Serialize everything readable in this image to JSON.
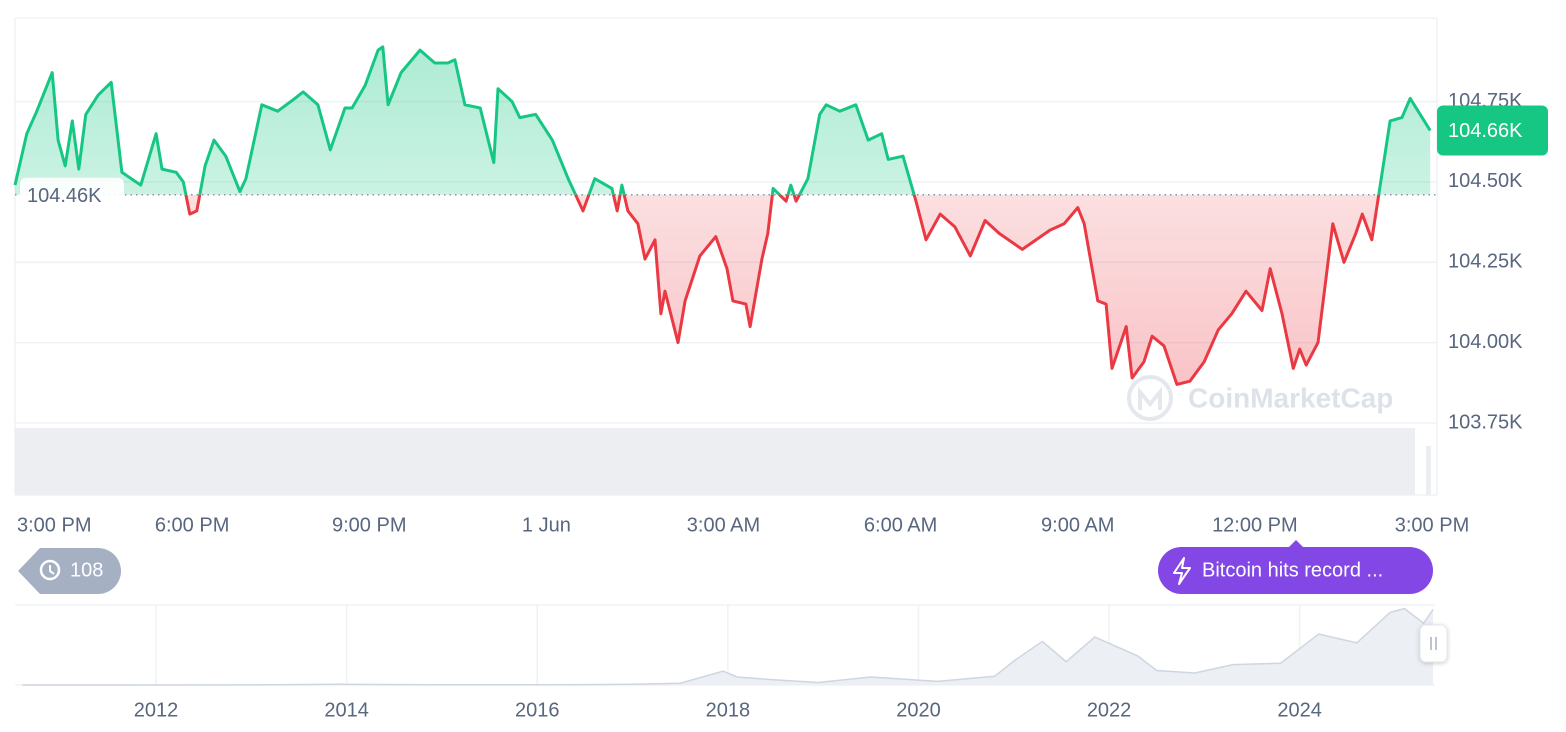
{
  "chart_data": [
    {
      "type": "line",
      "xlim": [
        15,
        39
      ],
      "xticks": [
        {
          "value": 15,
          "label": "3:00 PM"
        },
        {
          "value": 18,
          "label": "6:00 PM"
        },
        {
          "value": 21,
          "label": "9:00 PM"
        },
        {
          "value": 24,
          "label": "1 Jun"
        },
        {
          "value": 27,
          "label": "3:00 AM"
        },
        {
          "value": 30,
          "label": "6:00 AM"
        },
        {
          "value": 33,
          "label": "9:00 AM"
        },
        {
          "value": 36,
          "label": "12:00 PM"
        },
        {
          "value": 39,
          "label": "3:00 PM"
        }
      ],
      "ylim": [
        103750,
        105010
      ],
      "yticks": [
        {
          "value": 103750,
          "label": "103.75K"
        },
        {
          "value": 104000,
          "label": "104.00K"
        },
        {
          "value": 104250,
          "label": "104.25K"
        },
        {
          "value": 104500,
          "label": "104.50K"
        },
        {
          "value": 104750,
          "label": "104.75K"
        }
      ],
      "grid": true,
      "color_above": "#16c784",
      "color_below": "#ea3943",
      "baseline": {
        "value": 104460,
        "label": "104.46K"
      },
      "last_price": {
        "value": 104660,
        "label": "104.66K"
      },
      "events": {
        "count": 108,
        "news": "Bitcoin hits record ..."
      },
      "watermark": "CoinMarketCap",
      "x": [
        15.0,
        15.2,
        15.37,
        15.63,
        15.73,
        15.85,
        15.97,
        16.08,
        16.2,
        16.41,
        16.63,
        16.81,
        17.13,
        17.39,
        17.49,
        17.73,
        17.85,
        17.96,
        18.08,
        18.22,
        18.37,
        18.57,
        18.81,
        18.91,
        19.18,
        19.45,
        19.74,
        19.88,
        20.13,
        20.34,
        20.59,
        20.71,
        20.93,
        21.15,
        21.23,
        21.32,
        21.54,
        21.86,
        22.11,
        22.33,
        22.45,
        22.62,
        22.88,
        23.11,
        23.18,
        23.42,
        23.55,
        23.82,
        24.1,
        24.37,
        24.62,
        24.82,
        25.11,
        25.2,
        25.28,
        25.38,
        25.55,
        25.67,
        25.84,
        25.94,
        26.01,
        26.23,
        26.35,
        26.6,
        26.87,
        27.06,
        27.16,
        27.38,
        27.45,
        27.65,
        27.75,
        27.84,
        28.06,
        28.14,
        28.23,
        28.43,
        28.63,
        28.74,
        28.97,
        29.24,
        29.45,
        29.68,
        29.79,
        30.04,
        30.26,
        30.43,
        30.67,
        30.92,
        31.18,
        31.43,
        31.67,
        32.06,
        32.53,
        32.77,
        33.0,
        33.11,
        33.34,
        33.48,
        33.58,
        33.82,
        33.92,
        34.12,
        34.26,
        34.46,
        34.68,
        34.9,
        35.14,
        35.38,
        35.61,
        35.85,
        36.12,
        36.26,
        36.46,
        36.65,
        36.76,
        36.87,
        37.07,
        37.32,
        37.51,
        37.71,
        37.82,
        37.98,
        38.19,
        38.29,
        38.49,
        38.63,
        38.97
      ],
      "values": [
        104490,
        104650,
        104720,
        104840,
        104630,
        104550,
        104690,
        104540,
        104710,
        104770,
        104810,
        104530,
        104490,
        104650,
        104540,
        104530,
        104500,
        104400,
        104410,
        104550,
        104630,
        104580,
        104470,
        104510,
        104740,
        104720,
        104760,
        104780,
        104740,
        104600,
        104730,
        104730,
        104800,
        104910,
        104920,
        104740,
        104840,
        104910,
        104870,
        104870,
        104880,
        104740,
        104730,
        104560,
        104790,
        104750,
        104700,
        104710,
        104630,
        104510,
        104410,
        104510,
        104480,
        104410,
        104490,
        104410,
        104370,
        104260,
        104320,
        104090,
        104160,
        104000,
        104130,
        104270,
        104330,
        104230,
        104130,
        104120,
        104050,
        104260,
        104340,
        104480,
        104440,
        104490,
        104440,
        104510,
        104710,
        104740,
        104720,
        104740,
        104630,
        104650,
        104570,
        104580,
        104440,
        104320,
        104400,
        104360,
        104270,
        104380,
        104340,
        104290,
        104350,
        104370,
        104420,
        104370,
        104130,
        104120,
        103920,
        104050,
        103890,
        103940,
        104020,
        103990,
        103870,
        103880,
        103940,
        104040,
        104090,
        104160,
        104100,
        104230,
        104090,
        103920,
        103980,
        103930,
        104000,
        104370,
        104250,
        104340,
        104400,
        104320,
        104570,
        104690,
        104700,
        104760,
        104660
      ]
    },
    {
      "type": "area",
      "xlim": [
        2010.52,
        2025.42
      ],
      "xticks": [
        2012,
        2014,
        2016,
        2018,
        2020,
        2022,
        2024
      ],
      "ylim": [
        0,
        110000
      ],
      "color": "#cfd6e0",
      "x": [
        2010.6,
        2013.0,
        2013.9,
        2015.0,
        2016.5,
        2017.0,
        2017.5,
        2017.95,
        2018.1,
        2018.5,
        2018.95,
        2019.5,
        2020.2,
        2020.8,
        2021.0,
        2021.3,
        2021.55,
        2021.85,
        2022.3,
        2022.5,
        2022.9,
        2023.3,
        2023.8,
        2024.2,
        2024.6,
        2024.95,
        2025.1,
        2025.3,
        2025.4
      ],
      "values": [
        0,
        100,
        1000,
        300,
        600,
        1000,
        2500,
        19000,
        11000,
        7000,
        3500,
        11000,
        5000,
        12000,
        33000,
        60000,
        32000,
        66000,
        40000,
        20000,
        16500,
        28000,
        30000,
        70000,
        58000,
        100000,
        105000,
        85000,
        104000
      ]
    }
  ]
}
